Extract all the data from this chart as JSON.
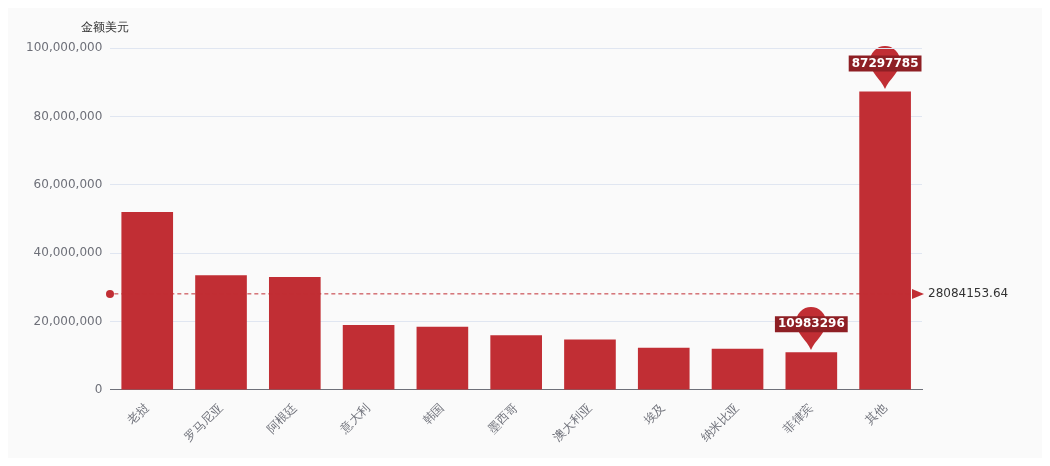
{
  "chart_data": {
    "type": "bar",
    "ylabel": "金额美元",
    "categories": [
      "老挝",
      "罗马尼亚",
      "阿根廷",
      "意大利",
      "韩国",
      "墨西哥",
      "澳大利亚",
      "埃及",
      "纳米比亚",
      "菲律宾",
      "其他"
    ],
    "values": [
      52000000,
      33500000,
      33000000,
      19000000,
      18500000,
      16000000,
      14700000,
      12300000,
      12000000,
      10983296,
      87297785
    ],
    "value_labels": [
      null,
      null,
      null,
      null,
      null,
      null,
      null,
      null,
      null,
      "10983296",
      "87297785"
    ],
    "color": "#c12e34",
    "ylim": [
      0,
      100000000
    ],
    "yticks": [
      0,
      {
        "value": 20000000,
        "label": "20,000,000"
      },
      {
        "value": 40000000,
        "label": "40,000,000"
      },
      {
        "value": 60000000,
        "label": "60,000,000"
      },
      {
        "value": 80000000,
        "label": "80,000,000"
      },
      {
        "value": 100000000,
        "label": "100,000,000"
      }
    ],
    "ref_lines": [
      {
        "axis": "y",
        "value": 28084153.64,
        "label": "28084153.64",
        "color": "#c12e34",
        "line_style": "dashed"
      }
    ],
    "grid": "y",
    "legend": false
  }
}
